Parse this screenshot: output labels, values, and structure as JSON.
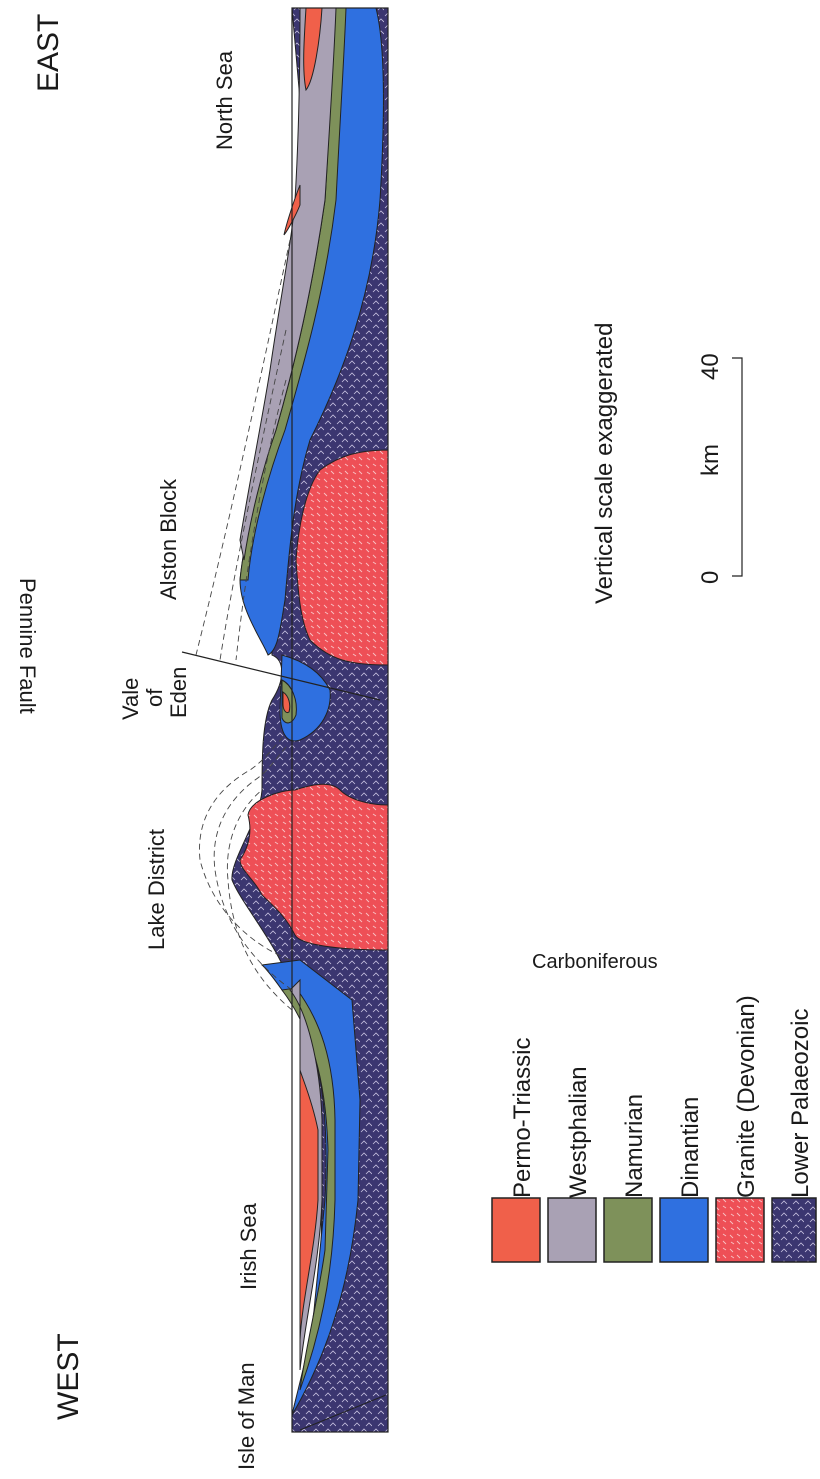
{
  "title": {
    "west": "WEST",
    "east": "EAST"
  },
  "places": {
    "isle_of_man": "Isle of Man",
    "irish_sea": "Irish Sea",
    "lake_district": "Lake District",
    "vale_of_eden": [
      "Vale",
      "of",
      "Eden"
    ],
    "pennine_fault": "Pennine Fault",
    "alston_block": "Alston Block",
    "north_sea": "North Sea"
  },
  "scale": {
    "note": "Vertical scale exaggerated",
    "unit": "km",
    "ticks": [
      "0",
      "40"
    ]
  },
  "legend": {
    "group_label": "Carboniferous",
    "items": [
      {
        "label": "Permo-Triassic",
        "color": "#f0604a",
        "pattern": "none"
      },
      {
        "label": "Westphalian",
        "color": "#a9a1b4",
        "pattern": "none"
      },
      {
        "label": "Namurian",
        "color": "#7e915a",
        "pattern": "none"
      },
      {
        "label": "Dinantian",
        "color": "#2f70e0",
        "pattern": "none"
      },
      {
        "label": "Granite (Devonian)",
        "color": "#ee4f56",
        "pattern": "dots"
      },
      {
        "label": "Lower Palaeozoic",
        "color": "#3b3670",
        "pattern": "chevron"
      }
    ]
  }
}
